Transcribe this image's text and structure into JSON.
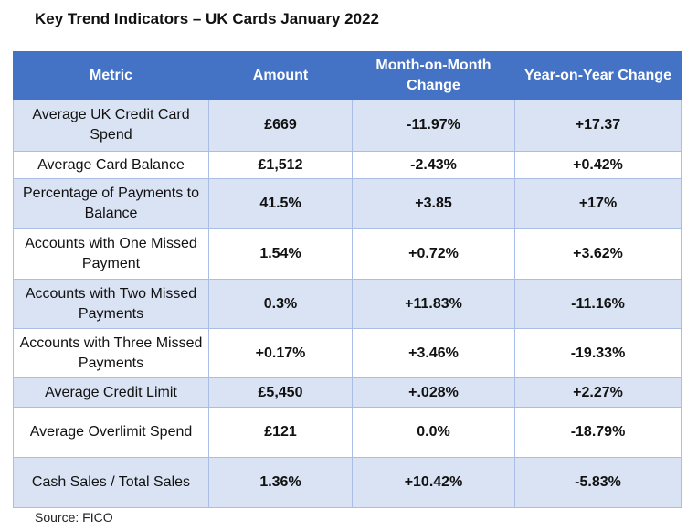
{
  "title": "Key Trend Indicators – UK Cards January 2022",
  "table": {
    "headers": [
      "Metric",
      "Amount",
      "Month-on-Month Change",
      "Year-on-Year Change"
    ],
    "rows": [
      {
        "metric": "Average UK Credit Card Spend",
        "amount": "£669",
        "mom": "-11.97%",
        "yoy": "+17.37"
      },
      {
        "metric": "Average Card Balance",
        "amount": "£1,512",
        "mom": "-2.43%",
        "yoy": "+0.42%"
      },
      {
        "metric": "Percentage of Payments to Balance",
        "amount": "41.5%",
        "mom": "+3.85",
        "yoy": "+17%"
      },
      {
        "metric": "Accounts with One Missed Payment",
        "amount": "1.54%",
        "mom": "+0.72%",
        "yoy": "+3.62%"
      },
      {
        "metric": "Accounts with Two Missed Payments",
        "amount": "0.3%",
        "mom": "+11.83%",
        "yoy": "-11.16%"
      },
      {
        "metric": "Accounts with Three Missed Payments",
        "amount": "+0.17%",
        "mom": "+3.46%",
        "yoy": "-19.33%"
      },
      {
        "metric": "Average Credit Limit",
        "amount": "£5,450",
        "mom": "+.028%",
        "yoy": "+2.27%"
      },
      {
        "metric": "Average Overlimit Spend",
        "amount": "£121",
        "mom": "0.0%",
        "yoy": "-18.79%"
      },
      {
        "metric": "Cash Sales / Total Sales",
        "amount": "1.36%",
        "mom": "+10.42%",
        "yoy": "-5.83%"
      }
    ]
  },
  "source": "Source: FICO",
  "colors": {
    "header_bg": "#4472c4",
    "row_shade": "#dae3f3",
    "border": "#a9bde6"
  }
}
